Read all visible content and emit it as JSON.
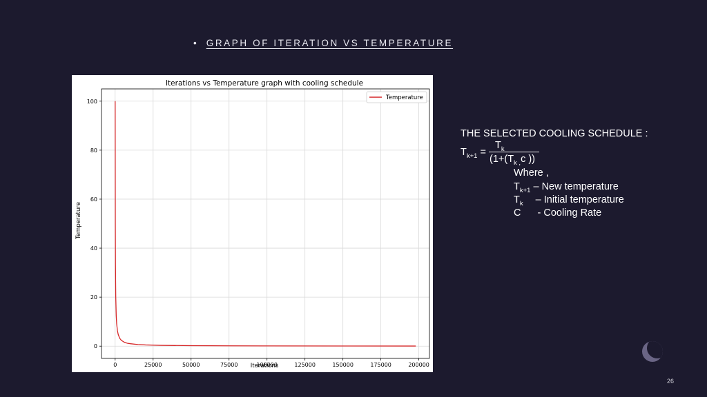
{
  "slide": {
    "bullet": "•",
    "title": "GRAPH OF ITERATION VS TEMPERATURE",
    "page_number": "26"
  },
  "formula": {
    "heading": "THE SELECTED COOLING SCHEDULE :",
    "lhs_base": "T",
    "lhs_sub": "k+1",
    "equals": "=",
    "num_base": "T",
    "num_sub": "k",
    "den_a": "(1+(T",
    "den_sub": "k ,",
    "den_b": "c ))",
    "where": "Where ,",
    "def1_base": "T",
    "def1_sub": "k+1",
    "def1_text": " – New temperature",
    "def2_base": "T",
    "def2_sub": "k",
    "def2_text": "– Initial temperature",
    "def3_base": "C",
    "def3_text": "- Cooling Rate"
  },
  "colors": {
    "background": "#1c1a2e",
    "line": "#d62728"
  },
  "chart_data": {
    "type": "line",
    "title": "Iterations vs Temperature graph with cooling schedule",
    "xlabel": "Iterations",
    "ylabel": "Temperature",
    "xlim": [
      -9000,
      207000
    ],
    "ylim": [
      -5,
      105
    ],
    "xticks": [
      0,
      25000,
      50000,
      75000,
      100000,
      125000,
      150000,
      175000,
      200000
    ],
    "yticks": [
      0,
      20,
      40,
      60,
      80,
      100
    ],
    "grid": true,
    "legend_position": "top-right",
    "series": [
      {
        "name": "Temperature",
        "x": [
          0,
          100,
          200,
          400,
          700,
          1000,
          1500,
          2000,
          3000,
          4000,
          6000,
          8000,
          10000,
          15000,
          20000,
          30000,
          50000,
          75000,
          100000,
          150000,
          198000
        ],
        "y": [
          100,
          50,
          33.3,
          20,
          12.5,
          9.1,
          6.3,
          4.8,
          3.2,
          2.4,
          1.6,
          1.2,
          1.0,
          0.66,
          0.5,
          0.33,
          0.2,
          0.13,
          0.1,
          0.07,
          0.05
        ]
      }
    ]
  }
}
